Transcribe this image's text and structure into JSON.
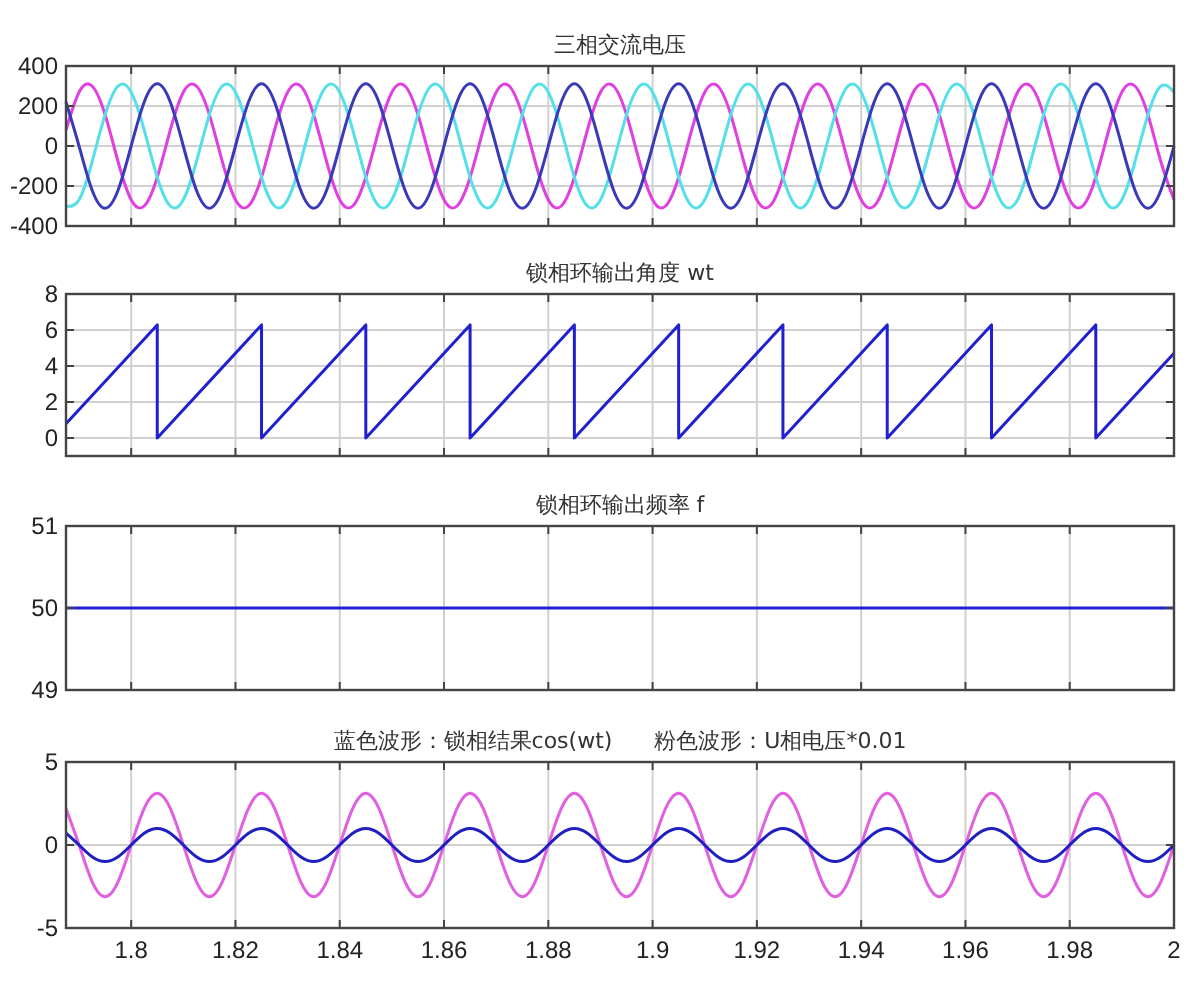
{
  "chart_data": [
    {
      "type": "line",
      "title": "三相交流电压",
      "x": [
        1.7875,
        1.79,
        1.7925,
        1.795,
        1.7975,
        1.8,
        1.8025,
        1.805,
        1.8075,
        1.81,
        1.8125,
        1.815,
        1.8175,
        1.82,
        1.8225,
        1.825,
        1.8275,
        1.83,
        1.8325,
        1.835,
        1.8375,
        1.84,
        1.8425,
        1.845,
        1.8475,
        1.85,
        1.8525,
        1.855,
        1.8575,
        1.86,
        1.8625,
        1.865,
        1.8675,
        1.87,
        1.8725,
        1.875,
        1.8775,
        1.88,
        1.8825,
        1.885,
        1.8875,
        1.89,
        1.8925,
        1.895,
        1.8975,
        1.9,
        1.9025,
        1.905,
        1.9075,
        1.91,
        1.9125,
        1.915,
        1.9175,
        1.92,
        1.9225,
        1.925,
        1.9275,
        1.93,
        1.9325,
        1.935,
        1.9375,
        1.94,
        1.9425,
        1.945,
        1.9475,
        1.95,
        1.9525,
        1.955,
        1.9575,
        1.96,
        1.9625,
        1.965,
        1.9675,
        1.97,
        1.9725,
        1.975,
        1.9775,
        1.98,
        1.9825,
        1.985,
        1.9875,
        1.99,
        1.9925,
        1.995,
        1.9975,
        2.0
      ],
      "series": [
        {
          "color": "#e040e0",
          "values": [
            80,
            269,
            300,
            156,
            -80,
            -269,
            -300,
            -156,
            80,
            269,
            300,
            156,
            -80,
            -269,
            -300,
            -156,
            80,
            269,
            300,
            156,
            -80,
            -269,
            -300,
            -156,
            80,
            269,
            300,
            156,
            -80,
            -269,
            -300,
            -156,
            80,
            269,
            300,
            156,
            -80,
            -269,
            -300,
            -156,
            80,
            269,
            300,
            156,
            -80,
            -269,
            -300,
            -156,
            80,
            269,
            300,
            156,
            -80,
            -269,
            -300,
            -156,
            80,
            269,
            300,
            156,
            -80,
            -269,
            -300,
            -156,
            80,
            269,
            300,
            156,
            -80,
            -269,
            -300,
            -156,
            80,
            269,
            300,
            156,
            -80,
            -269,
            -300,
            -156,
            80,
            269,
            300,
            156,
            -80,
            -269
          ]
        },
        {
          "color": "#55e0e8",
          "values": [
            -300,
            -269,
            -80,
            156,
            300,
            269,
            80,
            -156,
            -300,
            -269,
            -80,
            156,
            300,
            269,
            80,
            -156,
            -300,
            -269,
            -80,
            156,
            300,
            269,
            80,
            -156,
            -300,
            -269,
            -80,
            156,
            300,
            269,
            80,
            -156,
            -300,
            -269,
            -80,
            156,
            300,
            269,
            80,
            -156,
            -300,
            -269,
            -80,
            156,
            300,
            269,
            80,
            -156,
            -300,
            -269,
            -80,
            156,
            300,
            269,
            80,
            -156,
            -300,
            -269,
            -80,
            156,
            300,
            269,
            80,
            -156,
            -300,
            -269,
            -80,
            156,
            300,
            269,
            80,
            -156,
            -300,
            -269,
            -80,
            156,
            300,
            269,
            80,
            -156,
            -300,
            -269,
            -80,
            156,
            300,
            269
          ]
        },
        {
          "color": "#3a3ab8",
          "values": [
            220,
            0,
            -220,
            -311,
            -220,
            0,
            220,
            311,
            220,
            0,
            -220,
            -311,
            -220,
            0,
            220,
            311,
            220,
            0,
            -220,
            -311,
            -220,
            0,
            220,
            311,
            220,
            0,
            -220,
            -311,
            -220,
            0,
            220,
            311,
            220,
            0,
            -220,
            -311,
            -220,
            0,
            220,
            311,
            220,
            0,
            -220,
            -311,
            -220,
            0,
            220,
            311,
            220,
            0,
            -220,
            -311,
            -220,
            0,
            220,
            311,
            220,
            0,
            -220,
            -311,
            -220,
            0,
            220,
            311,
            220,
            0,
            -220,
            -311,
            -220,
            0,
            220,
            311,
            220,
            0,
            -220,
            -311,
            -220,
            0,
            220,
            311,
            220,
            0,
            -220,
            -311,
            -220,
            0
          ]
        }
      ],
      "xlim": [
        1.7875,
        2.0
      ],
      "xticks": [
        1.8,
        1.82,
        1.84,
        1.86,
        1.88,
        1.9,
        1.92,
        1.94,
        1.96,
        1.98,
        2
      ],
      "ylim": [
        -400,
        400
      ],
      "yticks": [
        -400,
        -200,
        0,
        200,
        400
      ],
      "grid": true,
      "tick_labels": "y"
    },
    {
      "type": "line",
      "title": "锁相环输出角度 wt",
      "x": [
        1.7875,
        1.805,
        1.805,
        1.825,
        1.825,
        1.845,
        1.845,
        1.865,
        1.865,
        1.885,
        1.885,
        1.905,
        1.905,
        1.925,
        1.925,
        1.945,
        1.945,
        1.965,
        1.965,
        1.985,
        1.985,
        2.0
      ],
      "series": [
        {
          "color": "#2020d0",
          "values": [
            0.79,
            6.28,
            0,
            6.28,
            0,
            6.28,
            0,
            6.28,
            0,
            6.28,
            0,
            6.28,
            0,
            6.28,
            0,
            6.28,
            0,
            6.28,
            0,
            6.28,
            0,
            4.71
          ]
        }
      ],
      "xlim": [
        1.7875,
        2.0
      ],
      "xticks": [
        1.8,
        1.82,
        1.84,
        1.86,
        1.88,
        1.9,
        1.92,
        1.94,
        1.96,
        1.98,
        2
      ],
      "ylim": [
        -1,
        8
      ],
      "yticks": [
        0,
        2,
        4,
        6,
        8
      ],
      "grid": true,
      "tick_labels": "y"
    },
    {
      "type": "line",
      "title": "锁相环输出频率 f",
      "x": [
        1.7875,
        2.0
      ],
      "series": [
        {
          "color": "#2020d0",
          "values": [
            50,
            50
          ]
        }
      ],
      "xlim": [
        1.7875,
        2.0
      ],
      "xticks": [
        1.8,
        1.82,
        1.84,
        1.86,
        1.88,
        1.9,
        1.92,
        1.94,
        1.96,
        1.98,
        2
      ],
      "ylim": [
        49,
        51
      ],
      "yticks": [
        49,
        50,
        51
      ],
      "grid": true,
      "tick_labels": "y"
    },
    {
      "type": "line",
      "title": "蓝色波形：锁相结果cos(wt)      粉色波形：U相电压*0.01",
      "x": [
        1.7875,
        1.79,
        1.7925,
        1.795,
        1.7975,
        1.8,
        1.8025,
        1.805,
        1.8075,
        1.81,
        1.8125,
        1.815,
        1.8175,
        1.82,
        1.8225,
        1.825,
        1.8275,
        1.83,
        1.8325,
        1.835,
        1.8375,
        1.84,
        1.8425,
        1.845,
        1.8475,
        1.85,
        1.8525,
        1.855,
        1.8575,
        1.86,
        1.8625,
        1.865,
        1.8675,
        1.87,
        1.8725,
        1.875,
        1.8775,
        1.88,
        1.8825,
        1.885,
        1.8875,
        1.89,
        1.8925,
        1.895,
        1.8975,
        1.9,
        1.9025,
        1.905,
        1.9075,
        1.91,
        1.9125,
        1.915,
        1.9175,
        1.92,
        1.9225,
        1.925,
        1.9275,
        1.93,
        1.9325,
        1.935,
        1.9375,
        1.94,
        1.9425,
        1.945,
        1.9475,
        1.95,
        1.9525,
        1.955,
        1.9575,
        1.96,
        1.9625,
        1.965,
        1.9675,
        1.97,
        1.9725,
        1.975,
        1.9775,
        1.98,
        1.9825,
        1.985,
        1.9875,
        1.99,
        1.9925,
        1.995,
        1.9975,
        2.0
      ],
      "series": [
        {
          "color": "#e060e0",
          "values": [
            2.2,
            0,
            -2.2,
            -3.11,
            -2.2,
            0,
            2.2,
            3.11,
            2.2,
            0,
            -2.2,
            -3.11,
            -2.2,
            0,
            2.2,
            3.11,
            2.2,
            0,
            -2.2,
            -3.11,
            -2.2,
            0,
            2.2,
            3.11,
            2.2,
            0,
            -2.2,
            -3.11,
            -2.2,
            0,
            2.2,
            3.11,
            2.2,
            0,
            -2.2,
            -3.11,
            -2.2,
            0,
            2.2,
            3.11,
            2.2,
            0,
            -2.2,
            -3.11,
            -2.2,
            0,
            2.2,
            3.11,
            2.2,
            0,
            -2.2,
            -3.11,
            -2.2,
            0,
            2.2,
            3.11,
            2.2,
            0,
            -2.2,
            -3.11,
            -2.2,
            0,
            2.2,
            3.11,
            2.2,
            0,
            -2.2,
            -3.11,
            -2.2,
            0,
            2.2,
            3.11,
            2.2,
            0,
            -2.2,
            -3.11,
            -2.2,
            0,
            2.2,
            3.11,
            2.2,
            0,
            -2.2,
            -3.11,
            -2.2,
            0
          ]
        },
        {
          "color": "#2020c0",
          "values": [
            0.71,
            0,
            -0.71,
            -1,
            -0.71,
            0,
            0.71,
            1,
            0.71,
            0,
            -0.71,
            -1,
            -0.71,
            0,
            0.71,
            1,
            0.71,
            0,
            -0.71,
            -1,
            -0.71,
            0,
            0.71,
            1,
            0.71,
            0,
            -0.71,
            -1,
            -0.71,
            0,
            0.71,
            1,
            0.71,
            0,
            -0.71,
            -1,
            -0.71,
            0,
            0.71,
            1,
            0.71,
            0,
            -0.71,
            -1,
            -0.71,
            0,
            0.71,
            1,
            0.71,
            0,
            -0.71,
            -1,
            -0.71,
            0,
            0.71,
            1,
            0.71,
            0,
            -0.71,
            -1,
            -0.71,
            0,
            0.71,
            1,
            0.71,
            0,
            -0.71,
            -1,
            -0.71,
            0,
            0.71,
            1,
            0.71,
            0,
            -0.71,
            -1,
            -0.71,
            0,
            0.71,
            1,
            0.71,
            0,
            -0.71,
            -1,
            -0.71,
            0
          ]
        }
      ],
      "xlim": [
        1.7875,
        2.0
      ],
      "xticks": [
        1.8,
        1.82,
        1.84,
        1.86,
        1.88,
        1.9,
        1.92,
        1.94,
        1.96,
        1.98,
        2
      ],
      "ylim": [
        -5,
        5
      ],
      "yticks": [
        -5,
        0,
        5
      ],
      "grid": true
    }
  ]
}
